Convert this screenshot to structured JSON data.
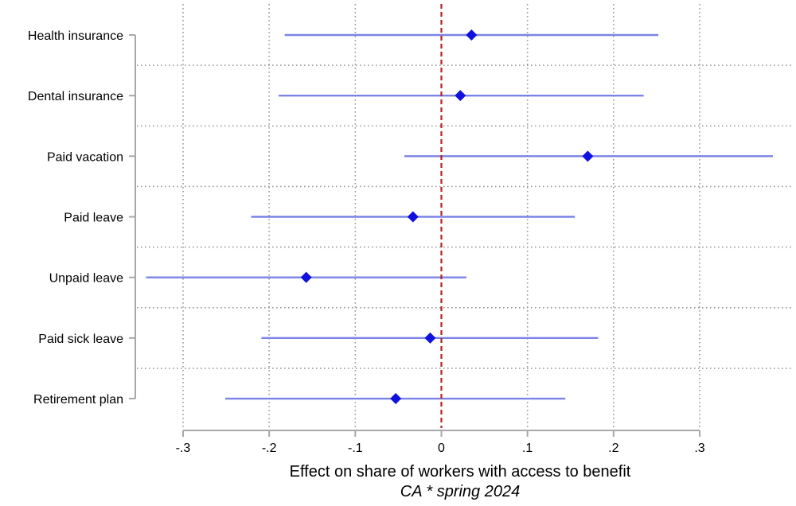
{
  "chart_data": {
    "type": "coefficient-plot",
    "categories": [
      "Health insurance",
      "Dental insurance",
      "Paid vacation",
      "Paid leave",
      "Unpaid leave",
      "Paid sick leave",
      "Retirement plan"
    ],
    "series": [
      {
        "estimates": [
          0.035,
          0.022,
          0.17,
          -0.033,
          -0.157,
          -0.013,
          -0.053
        ],
        "ci_low": [
          -0.182,
          -0.189,
          -0.043,
          -0.221,
          -0.343,
          -0.209,
          -0.251
        ],
        "ci_high": [
          0.252,
          0.235,
          0.385,
          0.155,
          0.029,
          0.182,
          0.144
        ]
      }
    ],
    "x_ticks": [
      -0.3,
      -0.2,
      -0.1,
      0,
      0.1,
      0.2,
      0.3
    ],
    "x_tick_labels": [
      "-.3",
      "-.2",
      "-.1",
      "0",
      ".1",
      ".2",
      ".3"
    ],
    "xlim": [
      -0.35,
      0.39
    ],
    "xlabel": "Effect on share of workers with access to benefit",
    "caption": "CA * spring 2024",
    "reference_line": 0,
    "grid": true,
    "colors": {
      "ci": "#7b83e6",
      "marker": "#1010e0",
      "refline": "#b22222",
      "grid": "#9a9a9a",
      "axis": "#a8a8a8"
    }
  }
}
